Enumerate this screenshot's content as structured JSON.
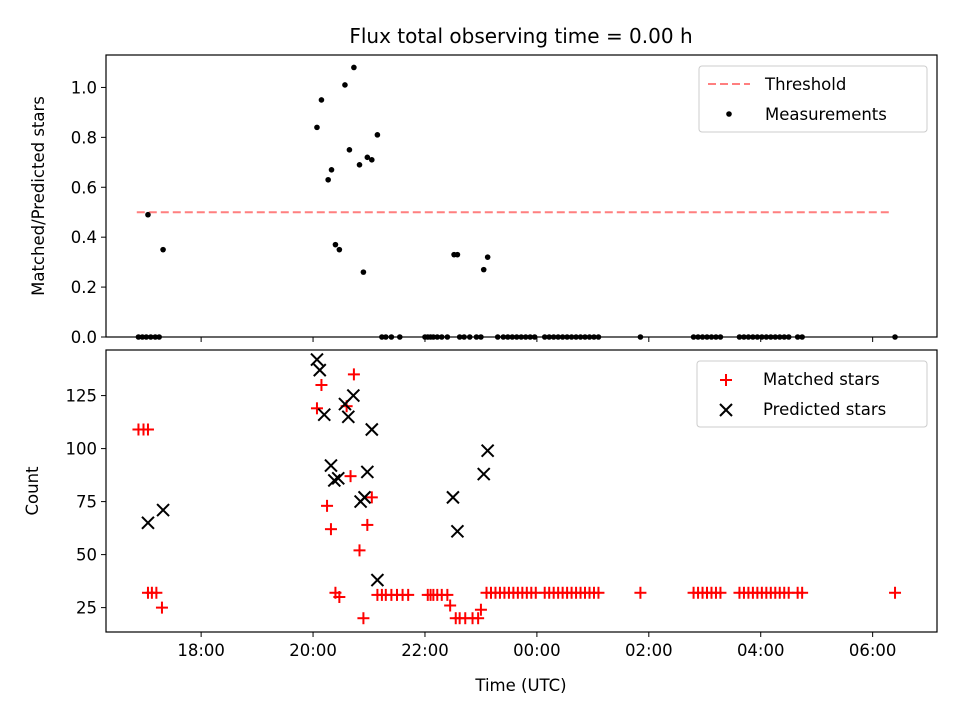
{
  "chart_data": [
    {
      "type": "scatter",
      "title": "Flux total observing time = 0.00 h",
      "xlabel": "",
      "ylabel": "Matched/Predicted stars",
      "xlim": [
        16.3,
        31.15
      ],
      "ylim": [
        0.0,
        1.13
      ],
      "yticks": [
        0.0,
        0.2,
        0.4,
        0.6,
        0.8,
        1.0
      ],
      "ytick_labels": [
        "0.0",
        "0.2",
        "0.4",
        "0.6",
        "0.8",
        "1.0"
      ],
      "legend_position": "upper right",
      "lines": [
        {
          "name": "Threshold",
          "style": "dashed",
          "color": "#ff7f7f",
          "x": [
            16.85,
            30.35
          ],
          "y": [
            0.5,
            0.5
          ]
        }
      ],
      "series": [
        {
          "name": "Measurements",
          "marker": "dot",
          "color": "#000000",
          "points": [
            [
              16.88,
              0
            ],
            [
              16.95,
              0
            ],
            [
              17.02,
              0
            ],
            [
              17.1,
              0
            ],
            [
              17.18,
              0
            ],
            [
              17.25,
              0
            ],
            [
              17.05,
              0.49
            ],
            [
              17.32,
              0.35
            ],
            [
              20.07,
              0.84
            ],
            [
              20.15,
              0.95
            ],
            [
              20.27,
              0.63
            ],
            [
              20.33,
              0.67
            ],
            [
              20.4,
              0.37
            ],
            [
              20.47,
              0.35
            ],
            [
              20.57,
              1.01
            ],
            [
              20.65,
              0.75
            ],
            [
              20.73,
              1.08
            ],
            [
              20.83,
              0.69
            ],
            [
              20.9,
              0.26
            ],
            [
              20.97,
              0.72
            ],
            [
              21.05,
              0.71
            ],
            [
              21.15,
              0.81
            ],
            [
              21.23,
              0
            ],
            [
              21.3,
              0
            ],
            [
              21.4,
              0
            ],
            [
              21.55,
              0
            ],
            [
              22.0,
              0
            ],
            [
              22.05,
              0
            ],
            [
              22.1,
              0
            ],
            [
              22.15,
              0
            ],
            [
              22.22,
              0
            ],
            [
              22.3,
              0
            ],
            [
              22.4,
              0
            ],
            [
              22.52,
              0.33
            ],
            [
              22.58,
              0.33
            ],
            [
              22.62,
              0
            ],
            [
              22.7,
              0
            ],
            [
              22.8,
              0
            ],
            [
              22.92,
              0
            ],
            [
              23.0,
              0
            ],
            [
              23.05,
              0.27
            ],
            [
              23.12,
              0.32
            ],
            [
              23.3,
              0
            ],
            [
              23.4,
              0
            ],
            [
              23.48,
              0
            ],
            [
              23.56,
              0
            ],
            [
              23.64,
              0
            ],
            [
              23.72,
              0
            ],
            [
              23.8,
              0
            ],
            [
              23.88,
              0
            ],
            [
              23.96,
              0
            ],
            [
              24.14,
              0
            ],
            [
              24.22,
              0
            ],
            [
              24.3,
              0
            ],
            [
              24.38,
              0
            ],
            [
              24.46,
              0
            ],
            [
              24.54,
              0
            ],
            [
              24.62,
              0
            ],
            [
              24.7,
              0
            ],
            [
              24.78,
              0
            ],
            [
              24.86,
              0
            ],
            [
              24.94,
              0
            ],
            [
              25.02,
              0
            ],
            [
              25.1,
              0
            ],
            [
              25.85,
              0
            ],
            [
              26.8,
              0
            ],
            [
              26.88,
              0
            ],
            [
              26.96,
              0
            ],
            [
              27.04,
              0
            ],
            [
              27.12,
              0
            ],
            [
              27.2,
              0
            ],
            [
              27.28,
              0
            ],
            [
              27.62,
              0
            ],
            [
              27.7,
              0
            ],
            [
              27.78,
              0
            ],
            [
              27.86,
              0
            ],
            [
              27.94,
              0
            ],
            [
              28.02,
              0
            ],
            [
              28.1,
              0
            ],
            [
              28.18,
              0
            ],
            [
              28.26,
              0
            ],
            [
              28.34,
              0
            ],
            [
              28.42,
              0
            ],
            [
              28.5,
              0
            ],
            [
              28.66,
              0
            ],
            [
              28.74,
              0
            ],
            [
              30.4,
              0
            ]
          ]
        }
      ]
    },
    {
      "type": "scatter",
      "title": "",
      "xlabel": "Time (UTC)",
      "ylabel": "Count",
      "xlim": [
        16.3,
        31.15
      ],
      "ylim": [
        13.5,
        146.5
      ],
      "yticks": [
        25,
        50,
        75,
        100,
        125
      ],
      "ytick_labels": [
        "25",
        "50",
        "75",
        "100",
        "125"
      ],
      "xticks": [
        18,
        20,
        22,
        24,
        26,
        28,
        30
      ],
      "xtick_labels": [
        "18:00",
        "20:00",
        "22:00",
        "00:00",
        "02:00",
        "04:00",
        "06:00"
      ],
      "legend_position": "upper right",
      "series": [
        {
          "name": "Matched stars",
          "marker": "plus",
          "color": "#ff0000",
          "points": [
            [
              16.88,
              109
            ],
            [
              16.97,
              109
            ],
            [
              17.05,
              109
            ],
            [
              17.05,
              32
            ],
            [
              17.12,
              32
            ],
            [
              17.2,
              32
            ],
            [
              17.3,
              25
            ],
            [
              20.07,
              119
            ],
            [
              20.15,
              130
            ],
            [
              20.25,
              73
            ],
            [
              20.32,
              62
            ],
            [
              20.4,
              32
            ],
            [
              20.47,
              30
            ],
            [
              20.6,
              120
            ],
            [
              20.67,
              87
            ],
            [
              20.73,
              135
            ],
            [
              20.83,
              52
            ],
            [
              20.9,
              20
            ],
            [
              20.97,
              64
            ],
            [
              21.05,
              77
            ],
            [
              21.15,
              31
            ],
            [
              21.23,
              31
            ],
            [
              21.3,
              31
            ],
            [
              21.4,
              31
            ],
            [
              21.5,
              31
            ],
            [
              21.6,
              31
            ],
            [
              21.7,
              31
            ],
            [
              22.05,
              31
            ],
            [
              22.1,
              31
            ],
            [
              22.15,
              31
            ],
            [
              22.22,
              31
            ],
            [
              22.3,
              31
            ],
            [
              22.4,
              31
            ],
            [
              22.45,
              26
            ],
            [
              22.55,
              20
            ],
            [
              22.62,
              20
            ],
            [
              22.72,
              20
            ],
            [
              22.85,
              20
            ],
            [
              22.95,
              20
            ],
            [
              23.0,
              24
            ],
            [
              23.1,
              32
            ],
            [
              23.18,
              32
            ],
            [
              23.26,
              32
            ],
            [
              23.34,
              32
            ],
            [
              23.42,
              32
            ],
            [
              23.5,
              32
            ],
            [
              23.58,
              32
            ],
            [
              23.66,
              32
            ],
            [
              23.74,
              32
            ],
            [
              23.82,
              32
            ],
            [
              23.9,
              32
            ],
            [
              23.98,
              32
            ],
            [
              24.14,
              32
            ],
            [
              24.22,
              32
            ],
            [
              24.3,
              32
            ],
            [
              24.38,
              32
            ],
            [
              24.46,
              32
            ],
            [
              24.54,
              32
            ],
            [
              24.62,
              32
            ],
            [
              24.7,
              32
            ],
            [
              24.78,
              32
            ],
            [
              24.86,
              32
            ],
            [
              24.94,
              32
            ],
            [
              25.02,
              32
            ],
            [
              25.1,
              32
            ],
            [
              25.85,
              32
            ],
            [
              26.8,
              32
            ],
            [
              26.88,
              32
            ],
            [
              26.96,
              32
            ],
            [
              27.04,
              32
            ],
            [
              27.12,
              32
            ],
            [
              27.2,
              32
            ],
            [
              27.28,
              32
            ],
            [
              27.62,
              32
            ],
            [
              27.7,
              32
            ],
            [
              27.78,
              32
            ],
            [
              27.86,
              32
            ],
            [
              27.94,
              32
            ],
            [
              28.02,
              32
            ],
            [
              28.1,
              32
            ],
            [
              28.18,
              32
            ],
            [
              28.26,
              32
            ],
            [
              28.34,
              32
            ],
            [
              28.42,
              32
            ],
            [
              28.5,
              32
            ],
            [
              28.66,
              32
            ],
            [
              28.74,
              32
            ],
            [
              30.4,
              32
            ]
          ]
        },
        {
          "name": "Predicted stars",
          "marker": "x",
          "color": "#000000",
          "points": [
            [
              17.05,
              65
            ],
            [
              17.32,
              71
            ],
            [
              20.07,
              142
            ],
            [
              20.12,
              137
            ],
            [
              20.2,
              116
            ],
            [
              20.32,
              92
            ],
            [
              20.38,
              85
            ],
            [
              20.45,
              86
            ],
            [
              20.57,
              121
            ],
            [
              20.63,
              115
            ],
            [
              20.72,
              125
            ],
            [
              20.85,
              75
            ],
            [
              20.92,
              77
            ],
            [
              20.97,
              89
            ],
            [
              21.05,
              109
            ],
            [
              21.15,
              38
            ],
            [
              22.5,
              77
            ],
            [
              22.58,
              61
            ],
            [
              23.05,
              88
            ],
            [
              23.12,
              99
            ]
          ]
        }
      ]
    }
  ]
}
